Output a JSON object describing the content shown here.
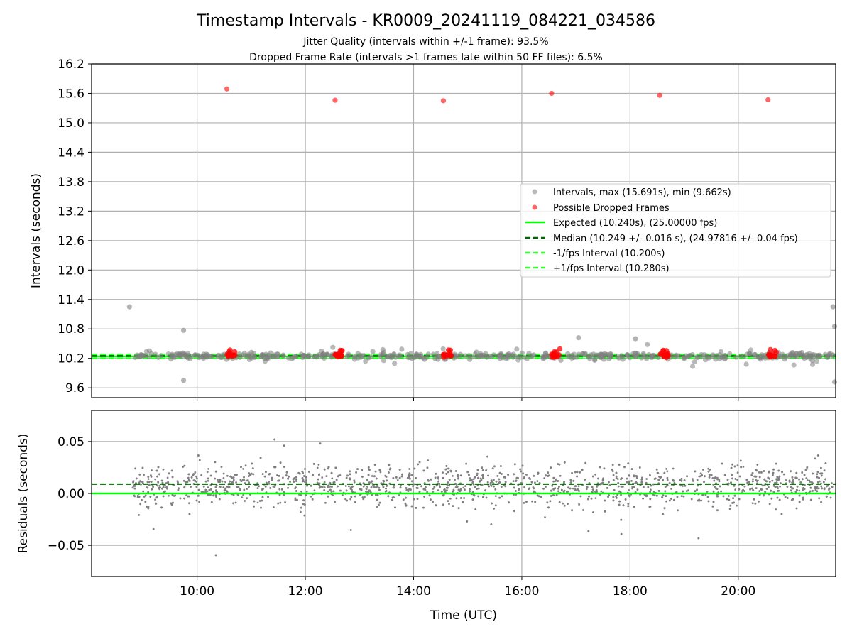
{
  "chart_data": [
    {
      "type": "scatter",
      "title": "Timestamp Intervals - KR0009_20241119_084221_034586",
      "subtitle_lines": [
        "Jitter Quality (intervals within +/-1 frame): 93.5%",
        "Dropped Frame Rate (intervals >1 frames late within 50 FF files): 6.5%"
      ],
      "xlabel": "",
      "ylabel": "Intervals (seconds)",
      "x_unit": "hours UTC",
      "xlim": [
        8.05,
        21.8
      ],
      "ylim": [
        9.4,
        16.2
      ],
      "yticks": [
        9.6,
        10.2,
        10.8,
        11.4,
        12.0,
        12.6,
        13.2,
        13.8,
        14.4,
        15.0,
        15.6,
        16.2
      ],
      "ytick_labels": [
        "9.6",
        "10.2",
        "10.8",
        "11.4",
        "12.0",
        "12.6",
        "13.2",
        "13.8",
        "14.4",
        "15.0",
        "15.6",
        "16.2"
      ],
      "xticks": [
        10,
        12,
        14,
        16,
        18,
        20
      ],
      "grid": true,
      "legend_position": "center-right",
      "colors": {
        "intervals": "#808080",
        "dropped": "#ff0000",
        "expected": "#00ff00",
        "median": "#006400",
        "bounds": "#33ff33",
        "grid": "#b0b0b0"
      },
      "series": [
        {
          "name": "Intervals, max (15.691s), min (9.662s)",
          "marker": "circle",
          "points_summary": "dense band around 10.25 s across 08:45-21:45; outliers listed",
          "outliers": [
            [
              8.75,
              11.25
            ],
            [
              9.75,
              10.77
            ],
            [
              9.75,
              9.75
            ],
            [
              17.05,
              10.62
            ],
            [
              18.1,
              10.6
            ],
            [
              21.75,
              11.25
            ],
            [
              21.78,
              10.85
            ],
            [
              21.78,
              9.72
            ]
          ]
        },
        {
          "name": "Possible Dropped Frames",
          "marker": "circle",
          "points": [
            [
              10.55,
              15.69
            ],
            [
              12.55,
              15.46
            ],
            [
              14.55,
              15.45
            ],
            [
              16.55,
              15.6
            ],
            [
              18.55,
              15.56
            ],
            [
              20.55,
              15.47
            ]
          ],
          "clusters_near_10_25": [
            10.63,
            12.63,
            14.63,
            16.63,
            18.63,
            20.63
          ]
        },
        {
          "name": "Expected (10.240s), (25.00000 fps)",
          "style": "solid",
          "value": 10.24
        },
        {
          "name": "Median (10.249 +/- 0.016 s), (24.97816 +/- 0.04 fps)",
          "style": "dashed",
          "value": 10.249
        },
        {
          "name": "-1/fps Interval (10.200s)",
          "style": "dashed",
          "value": 10.2
        },
        {
          "name": "+1/fps Interval (10.280s)",
          "style": "dashed",
          "value": 10.28
        }
      ]
    },
    {
      "type": "scatter",
      "title": "",
      "xlabel": "Time (UTC)",
      "ylabel": "Residuals (seconds)",
      "x_unit": "hours UTC",
      "xlim": [
        8.05,
        21.8
      ],
      "ylim": [
        -0.08,
        0.08
      ],
      "yticks": [
        -0.05,
        0.0,
        0.05
      ],
      "ytick_labels": [
        "−0.05",
        "0.00",
        "0.05"
      ],
      "xticks": [
        10,
        12,
        14,
        16,
        18,
        20
      ],
      "xtick_labels": [
        "10:00",
        "12:00",
        "14:00",
        "16:00",
        "18:00",
        "20:00"
      ],
      "grid": true,
      "series": [
        {
          "name": "",
          "marker": "point",
          "points_summary": "residuals mostly between -0.025 and 0.04 s, 08:45-21:45"
        },
        {
          "name": "",
          "style": "solid",
          "value": 0.0
        },
        {
          "name": "",
          "style": "dashed",
          "value": 0.009
        }
      ]
    }
  ]
}
